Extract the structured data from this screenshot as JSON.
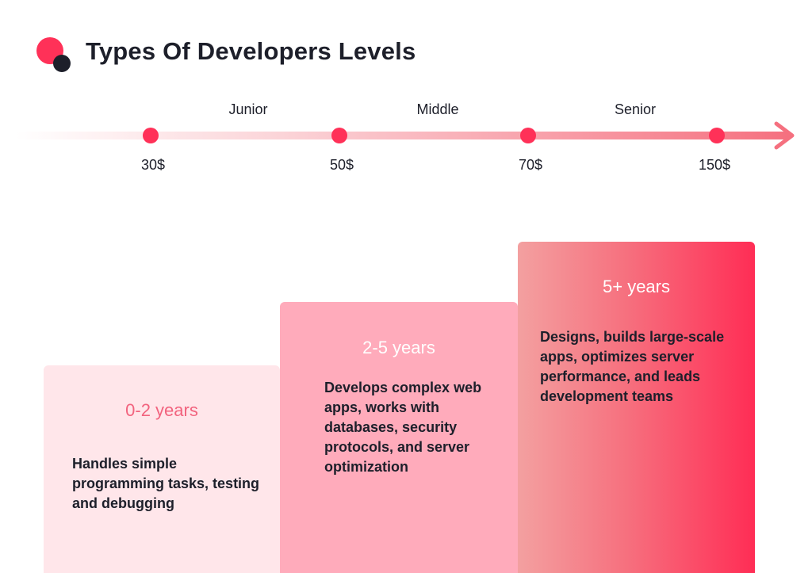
{
  "header": {
    "title": "Types Of Developers Levels"
  },
  "timeline": {
    "levels": [
      "Junior",
      "Middle",
      "Senior"
    ],
    "rates": [
      "30$",
      "50$",
      "70$",
      "150$"
    ],
    "colors": {
      "accent": "#ff3158",
      "track_start": "#ffffff",
      "track_end": "#f5707f"
    }
  },
  "cards": [
    {
      "years": "0-2 years",
      "description": "Handles simple programming tasks, testing and debugging"
    },
    {
      "years": "2-5 years",
      "description": "Develops complex web apps, works with databases, security protocols, and server optimization"
    },
    {
      "years": "5+ years",
      "description": "Designs, builds large-scale apps, optimizes server performance, and leads development teams"
    }
  ]
}
